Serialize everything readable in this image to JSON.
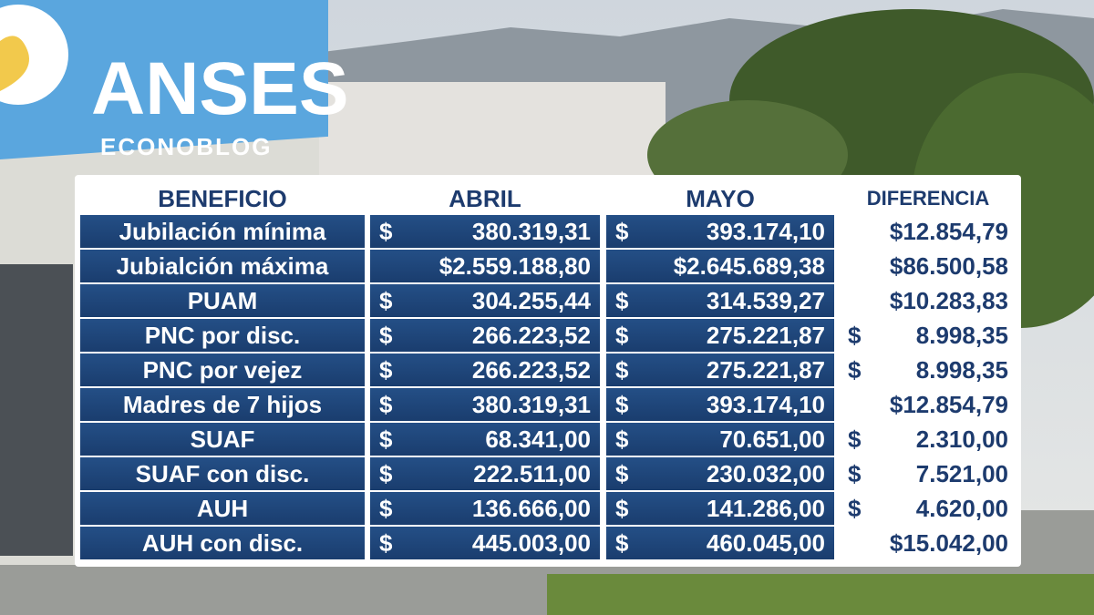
{
  "sign": {
    "brand": "ANSES",
    "tagline": "ECONOBLOG"
  },
  "table": {
    "headers": [
      "BENEFICIO",
      "ABRIL",
      "MAYO",
      "DIFERENCIA"
    ],
    "rows": [
      {
        "beneficio": "Jubilación mínima",
        "abril": {
          "sign": "$",
          "amount": "380.319,31"
        },
        "mayo": {
          "sign": "$",
          "amount": "393.174,10"
        },
        "diferencia": {
          "amount": "$12.854,79"
        }
      },
      {
        "beneficio": "Jubialción máxima",
        "abril": {
          "amount": "$2.559.188,80"
        },
        "mayo": {
          "amount": "$2.645.689,38"
        },
        "diferencia": {
          "amount": "$86.500,58"
        }
      },
      {
        "beneficio": "PUAM",
        "abril": {
          "sign": "$",
          "amount": "304.255,44"
        },
        "mayo": {
          "sign": "$",
          "amount": "314.539,27"
        },
        "diferencia": {
          "amount": "$10.283,83"
        }
      },
      {
        "beneficio": "PNC por disc.",
        "abril": {
          "sign": "$",
          "amount": "266.223,52"
        },
        "mayo": {
          "sign": "$",
          "amount": "275.221,87"
        },
        "diferencia": {
          "sign": "$",
          "amount": "8.998,35"
        }
      },
      {
        "beneficio": "PNC por vejez",
        "abril": {
          "sign": "$",
          "amount": "266.223,52"
        },
        "mayo": {
          "sign": "$",
          "amount": "275.221,87"
        },
        "diferencia": {
          "sign": "$",
          "amount": "8.998,35"
        }
      },
      {
        "beneficio": "Madres de 7 hijos",
        "abril": {
          "sign": "$",
          "amount": "380.319,31"
        },
        "mayo": {
          "sign": "$",
          "amount": "393.174,10"
        },
        "diferencia": {
          "amount": "$12.854,79"
        }
      },
      {
        "beneficio": "SUAF",
        "abril": {
          "sign": "$",
          "amount": "68.341,00"
        },
        "mayo": {
          "sign": "$",
          "amount": "70.651,00"
        },
        "diferencia": {
          "sign": "$",
          "amount": "2.310,00"
        }
      },
      {
        "beneficio": "SUAF con disc.",
        "abril": {
          "sign": "$",
          "amount": "222.511,00"
        },
        "mayo": {
          "sign": "$",
          "amount": "230.032,00"
        },
        "diferencia": {
          "sign": "$",
          "amount": "7.521,00"
        }
      },
      {
        "beneficio": "AUH",
        "abril": {
          "sign": "$",
          "amount": "136.666,00"
        },
        "mayo": {
          "sign": "$",
          "amount": "141.286,00"
        },
        "diferencia": {
          "sign": "$",
          "amount": "4.620,00"
        }
      },
      {
        "beneficio": "AUH con disc.",
        "abril": {
          "sign": "$",
          "amount": "445.003,00"
        },
        "mayo": {
          "sign": "$",
          "amount": "460.045,00"
        },
        "diferencia": {
          "amount": "$15.042,00"
        }
      }
    ]
  }
}
